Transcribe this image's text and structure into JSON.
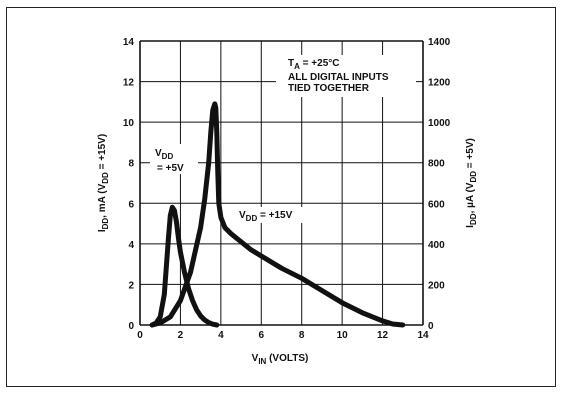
{
  "chart_data": {
    "type": "line",
    "xlabel": {
      "main": "V",
      "sub": "IN",
      "rest": " (VOLTS)"
    },
    "ylabel_left": {
      "p1": "I",
      "s1": "DD",
      "p2": ", mA (V",
      "s2": "DD",
      "p3": " = +15V)"
    },
    "ylabel_right": {
      "p1": "I",
      "s1": "DD",
      "p2": ", µA (V",
      "s2": "DD",
      "p3": " = +5V)"
    },
    "xlim": [
      0,
      14
    ],
    "ylim_left": [
      0,
      14
    ],
    "ylim_right": [
      0,
      1400
    ],
    "x_ticks": [
      "0",
      "2",
      "4",
      "6",
      "8",
      "10",
      "12",
      "14"
    ],
    "y_ticks_left": [
      "0",
      "2",
      "4",
      "6",
      "8",
      "10",
      "12",
      "14"
    ],
    "y_ticks_right": [
      "0",
      "200",
      "400",
      "600",
      "800",
      "1000",
      "1200",
      "1400"
    ],
    "grid": true,
    "annotations": {
      "temp": {
        "p1": "T",
        "s1": "A",
        "p2": " = +25°C"
      },
      "inputs_line1": "ALL DIGITAL INPUTS",
      "inputs_line2": "TIED TOGETHER"
    },
    "series": [
      {
        "label_parts": {
          "p1": "V",
          "s1": "DD",
          "p2": "= +5V"
        },
        "axis": "right",
        "x": [
          0.6,
          0.8,
          1.0,
          1.2,
          1.4,
          1.5,
          1.6,
          1.7,
          1.8,
          1.9,
          2.0,
          2.2,
          2.4,
          2.6,
          2.8,
          3.0,
          3.2,
          3.4,
          3.6,
          3.8
        ],
        "y": [
          0,
          10,
          40,
          150,
          420,
          540,
          580,
          565,
          510,
          430,
          360,
          260,
          180,
          120,
          75,
          45,
          25,
          12,
          4,
          0
        ]
      },
      {
        "label_parts": {
          "p1": "V",
          "s1": "DD",
          "p2": " = +15V"
        },
        "axis": "left",
        "x": [
          0.6,
          1.0,
          1.5,
          2.0,
          2.5,
          3.0,
          3.2,
          3.4,
          3.5,
          3.6,
          3.7,
          3.75,
          3.8,
          3.85,
          3.9,
          4.0,
          4.2,
          4.5,
          5.0,
          5.5,
          6.0,
          7.0,
          8.0,
          9.0,
          10.0,
          11.0,
          12.0,
          12.5,
          13.0
        ],
        "y": [
          0,
          0.1,
          0.4,
          1.2,
          2.6,
          4.8,
          6.2,
          8.0,
          9.5,
          10.6,
          10.9,
          10.7,
          9.5,
          7.5,
          6.0,
          5.3,
          4.8,
          4.5,
          4.1,
          3.7,
          3.4,
          2.8,
          2.3,
          1.7,
          1.1,
          0.6,
          0.2,
          0.05,
          0
        ]
      }
    ]
  }
}
